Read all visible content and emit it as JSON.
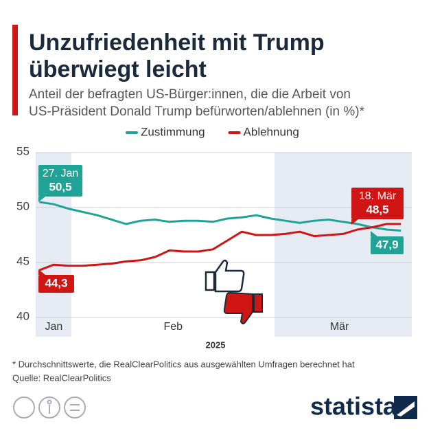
{
  "chart_data": {
    "type": "line",
    "title": [
      "Unzufriedenheit mit Trump",
      "überwiegt leicht"
    ],
    "subtitle": [
      "Anteil der befragten US-Bürger:innen, die die Arbeit von",
      "US-Präsident Donald Trump befürworten/ablehnen (in %)*"
    ],
    "x": [
      27,
      29,
      31,
      33,
      35,
      37,
      39,
      41,
      43,
      45,
      47,
      49,
      51,
      53,
      55,
      57,
      59,
      61,
      63,
      65,
      67,
      69,
      71,
      73,
      75,
      77
    ],
    "xlim": [
      26.5,
      78.5
    ],
    "xticks": [
      {
        "value": 29,
        "label": "Jan"
      },
      {
        "value": 45.5,
        "label": "Feb"
      },
      {
        "value": 68.5,
        "label": "Mär"
      }
    ],
    "xlabel": "2025",
    "ylim": [
      40,
      55
    ],
    "yticks": [
      40,
      45,
      50,
      55
    ],
    "grid": true,
    "series": [
      {
        "name": "Zustimmung",
        "color": "#1fa396",
        "values": [
          50.5,
          50.3,
          49.9,
          49.6,
          49.3,
          48.9,
          48.5,
          48.8,
          48.9,
          48.7,
          48.8,
          48.8,
          48.7,
          49.0,
          49.1,
          49.3,
          49.0,
          48.8,
          48.6,
          48.8,
          48.9,
          48.7,
          48.5,
          48.2,
          48.0,
          47.9
        ],
        "value_labels": [
          "50,5",
          null,
          null,
          null,
          null,
          null,
          null,
          null,
          null,
          null,
          null,
          null,
          null,
          null,
          null,
          null,
          null,
          null,
          null,
          null,
          null,
          null,
          null,
          null,
          null,
          "47,9"
        ]
      },
      {
        "name": "Ablehnung",
        "color": "#d01515",
        "values": [
          44.3,
          44.8,
          44.7,
          44.7,
          44.8,
          44.9,
          45.1,
          45.2,
          45.5,
          46.1,
          46.0,
          46.0,
          46.2,
          47.0,
          47.8,
          47.5,
          47.5,
          47.6,
          47.8,
          47.4,
          47.5,
          47.6,
          48.0,
          48.2,
          48.5,
          48.5
        ],
        "value_labels": [
          "44,3",
          null,
          null,
          null,
          null,
          null,
          null,
          null,
          null,
          null,
          null,
          null,
          null,
          null,
          null,
          null,
          null,
          null,
          null,
          null,
          null,
          null,
          null,
          null,
          null,
          "48,5"
        ]
      }
    ],
    "annotations": [
      "27. Jan",
      "18. Mär"
    ],
    "footnote": "* Durchschnittswerte, die RealClearPolitics aus ausgewählten Umfragen berechnet hat",
    "source": "Quelle: RealClearPolitics",
    "brand": "statista"
  }
}
